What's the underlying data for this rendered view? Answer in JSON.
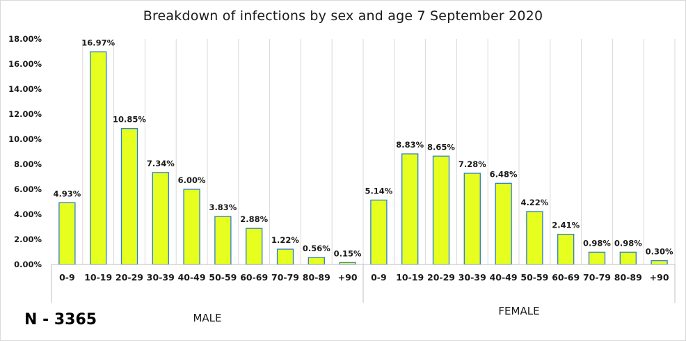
{
  "chart_data": {
    "type": "bar",
    "title": "Breakdown of infections by sex and age 7 September 2020",
    "categories": [
      "0-9",
      "10-19",
      "20-29",
      "30-39",
      "40-49",
      "50-59",
      "60-69",
      "70-79",
      "80-89",
      "+90",
      "0-9",
      "10-19",
      "20-29",
      "30-39",
      "40-49",
      "50-59",
      "60-69",
      "70-79",
      "80-89",
      "+90"
    ],
    "groups": [
      {
        "name": "MALE",
        "start": 0,
        "count": 10
      },
      {
        "name": "FEMALE",
        "start": 10,
        "count": 10
      }
    ],
    "values": [
      4.93,
      16.97,
      10.85,
      7.34,
      6.0,
      3.83,
      2.88,
      1.22,
      0.56,
      0.15,
      5.14,
      8.83,
      8.65,
      7.28,
      6.48,
      4.22,
      2.41,
      0.98,
      0.98,
      0.3
    ],
    "data_labels": [
      "4.93%",
      "16.97%",
      "10.85%",
      "7.34%",
      "6.00%",
      "3.83%",
      "2.88%",
      "1.22%",
      "0.56%",
      "0.15%",
      "5.14%",
      "8.83%",
      "8.65%",
      "7.28%",
      "6.48%",
      "4.22%",
      "2.41%",
      "0.98%",
      "0.98%",
      "0.30%"
    ],
    "ylim": [
      0,
      18
    ],
    "yticks": [
      0,
      2,
      4,
      6,
      8,
      10,
      12,
      14,
      16,
      18
    ],
    "ytick_labels": [
      "0.00%",
      "2.00%",
      "4.00%",
      "6.00%",
      "8.00%",
      "10.00%",
      "12.00%",
      "14.00%",
      "16.00%",
      "18.00%"
    ],
    "xlabel": "",
    "ylabel": "",
    "grid": "vertical category separators",
    "legend": "none",
    "colors": {
      "bar_fill": "#e6ff1f",
      "bar_stroke": "#2b7bd6",
      "grid": "#d9d9d9",
      "axis": "#bfbfbf"
    }
  },
  "note": "N - 3365"
}
